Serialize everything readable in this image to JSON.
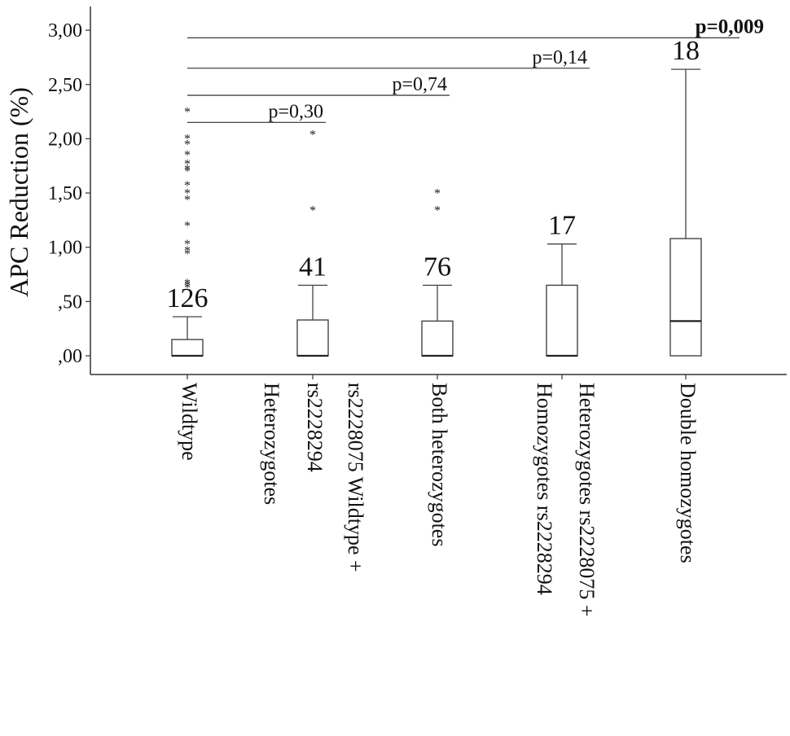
{
  "chart_data": {
    "type": "box",
    "ylabel": "APC Reduction (%)",
    "ylim": [
      0,
      3.0
    ],
    "yticks": [
      {
        "value": 0.0,
        "label": ",00"
      },
      {
        "value": 0.5,
        "label": ",50"
      },
      {
        "value": 1.0,
        "label": "1,00"
      },
      {
        "value": 1.5,
        "label": "1,50"
      },
      {
        "value": 2.0,
        "label": "2,00"
      },
      {
        "value": 2.5,
        "label": "2,50"
      },
      {
        "value": 3.0,
        "label": "3,00"
      }
    ],
    "grid": false,
    "categories": [
      {
        "label": [
          "Wildtype"
        ],
        "n": "126",
        "box": {
          "min": 0.0,
          "q1": 0.0,
          "median": 0.0,
          "q3": 0.15,
          "max": 0.36
        },
        "outliers": [
          2.27,
          2.02,
          1.97,
          1.87,
          1.79,
          1.74,
          1.72,
          1.59,
          1.52,
          1.46,
          1.22,
          1.05,
          0.99,
          0.96,
          0.69,
          0.67,
          0.65
        ]
      },
      {
        "label": [
          "Heterozygotes",
          "rs2228294",
          "rs2228075 Wildtype +"
        ],
        "n": "41",
        "box": {
          "min": 0.0,
          "q1": 0.0,
          "median": 0.0,
          "q3": 0.33,
          "max": 0.65
        },
        "outliers": [
          2.06,
          1.36
        ]
      },
      {
        "label": [
          "Both heterozygotes"
        ],
        "n": "76",
        "box": {
          "min": 0.0,
          "q1": 0.0,
          "median": 0.0,
          "q3": 0.32,
          "max": 0.65
        },
        "outliers": [
          1.52,
          1.36
        ]
      },
      {
        "label": [
          "Homozygotes  rs2228294",
          "Heterozygotes rs2228075 +"
        ],
        "n": "17",
        "box": {
          "min": 0.0,
          "q1": 0.0,
          "median": 0.0,
          "q3": 0.65,
          "max": 1.03
        },
        "outliers": []
      },
      {
        "label": [
          "Double homozygotes"
        ],
        "n": "18",
        "box": {
          "min": 0.0,
          "q1": 0.0,
          "median": 0.32,
          "q3": 1.08,
          "max": 2.64
        },
        "outliers": []
      }
    ],
    "comparisons": [
      {
        "from": 0,
        "to": 1,
        "label": "p=0,30",
        "y": 2.15,
        "bold": false
      },
      {
        "from": 0,
        "to": 2,
        "label": "p=0,74",
        "y": 2.4,
        "bold": false
      },
      {
        "from": 0,
        "to": 3,
        "label": "p=0,14",
        "y": 2.65,
        "bold": false
      },
      {
        "from": 0,
        "to": 4,
        "label": "p=0,009",
        "y": 2.93,
        "bold": true
      }
    ]
  }
}
